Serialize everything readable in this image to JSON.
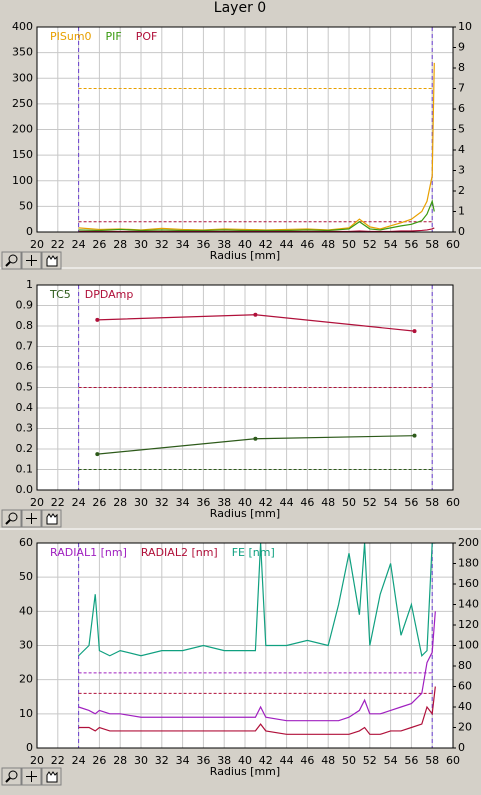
{
  "title": "Layer 0",
  "chart_data": [
    {
      "type": "line",
      "xlabel": "Radius [mm]",
      "xlim": [
        20,
        60
      ],
      "xticks": [
        20,
        22,
        24,
        26,
        28,
        30,
        32,
        34,
        36,
        38,
        40,
        42,
        44,
        46,
        48,
        50,
        52,
        54,
        56,
        58,
        60
      ],
      "ylim": [
        0,
        400
      ],
      "yticks": [
        0,
        50,
        100,
        150,
        200,
        250,
        300,
        350,
        400
      ],
      "y2lim": [
        0,
        10
      ],
      "y2ticks": [
        0,
        1,
        2,
        3,
        4,
        5,
        6,
        7,
        8,
        9,
        10
      ],
      "grid": true,
      "markers": false,
      "vlines": [
        24,
        58
      ],
      "vline_color": "#6a3fd0",
      "hlines": [
        {
          "value": 280,
          "color": "#e8a000"
        },
        {
          "value": 20,
          "color": "#b0103a"
        }
      ],
      "x": [
        24,
        26,
        28,
        30,
        32,
        34,
        36,
        38,
        40,
        42,
        44,
        46,
        48,
        50,
        51,
        52,
        53,
        54,
        55,
        56,
        57,
        57.5,
        58,
        58.2
      ],
      "series": [
        {
          "name": "PISum0",
          "color": "#e8a000",
          "values": [
            8,
            5,
            6,
            4,
            7,
            5,
            4,
            6,
            5,
            4,
            5,
            6,
            4,
            8,
            25,
            10,
            6,
            12,
            18,
            25,
            40,
            60,
            110,
            330
          ]
        },
        {
          "name": "PIF",
          "color": "#3a9a10",
          "values": [
            4,
            3,
            5,
            3,
            4,
            3,
            3,
            4,
            3,
            3,
            3,
            4,
            3,
            6,
            20,
            6,
            4,
            8,
            12,
            15,
            22,
            35,
            60,
            40
          ]
        },
        {
          "name": "POF",
          "color": "#b0103a",
          "values": [
            1,
            1,
            1,
            1,
            1,
            1,
            1,
            1,
            1,
            1,
            1,
            1,
            1,
            1,
            2,
            1,
            1,
            1,
            2,
            2,
            3,
            4,
            6,
            8
          ]
        }
      ]
    },
    {
      "type": "line",
      "xlabel": "Radius [mm]",
      "xlim": [
        20,
        60
      ],
      "xticks": [
        20,
        22,
        24,
        26,
        28,
        30,
        32,
        34,
        36,
        38,
        40,
        42,
        44,
        46,
        48,
        50,
        52,
        54,
        56,
        58,
        60
      ],
      "ylim": [
        0,
        1
      ],
      "yticks": [
        {
          "value": 0,
          "label": "0.0"
        },
        0.1,
        0.2,
        0.3,
        0.4,
        0.5,
        0.6,
        0.7,
        0.8,
        0.9,
        1
      ],
      "grid": true,
      "markers": true,
      "vlines": [
        24,
        58
      ],
      "vline_color": "#6a3fd0",
      "hlines": [
        {
          "value": 0.5,
          "color": "#b0103a"
        },
        {
          "value": 0.1,
          "color": "#2d5a1a"
        }
      ],
      "x": [
        25.8,
        41,
        56.3
      ],
      "series": [
        {
          "name": "TC5",
          "color": "#2d5a1a",
          "values": [
            0.175,
            0.25,
            0.265
          ]
        },
        {
          "name": "DPDAmp",
          "color": "#b0103a",
          "values": [
            0.83,
            0.855,
            0.775
          ]
        }
      ]
    },
    {
      "type": "line",
      "xlabel": "Radius [mm]",
      "xlim": [
        20,
        60
      ],
      "xticks": [
        20,
        22,
        24,
        26,
        28,
        30,
        32,
        34,
        36,
        38,
        40,
        42,
        44,
        46,
        48,
        50,
        52,
        54,
        56,
        58,
        60
      ],
      "ylim": [
        0,
        60
      ],
      "yticks": [
        0,
        10,
        20,
        30,
        40,
        50,
        60
      ],
      "y2lim": [
        0,
        200
      ],
      "y2ticks": [
        0,
        20,
        40,
        60,
        80,
        100,
        120,
        140,
        160,
        180,
        200
      ],
      "grid": true,
      "markers": false,
      "vlines": [
        24,
        58
      ],
      "vline_color": "#6a3fd0",
      "hlines": [
        {
          "value": 22,
          "color": "#a020c0"
        },
        {
          "value": 16,
          "color": "#b0103a"
        }
      ],
      "x": [
        24,
        25,
        25.6,
        26,
        27,
        28,
        30,
        32,
        34,
        36,
        38,
        40,
        41,
        41.5,
        42,
        44,
        46,
        48,
        49,
        50,
        51,
        51.5,
        52,
        53,
        54,
        55,
        56,
        57,
        57.5,
        58,
        58.3
      ],
      "series": [
        {
          "name": "RADIAL1 [nm]",
          "color": "#a020c0",
          "values": [
            12,
            11,
            10,
            11,
            10,
            10,
            9,
            9,
            9,
            9,
            9,
            9,
            9,
            12,
            9,
            8,
            8,
            8,
            8,
            9,
            11,
            14,
            10,
            10,
            11,
            12,
            13,
            16,
            25,
            28,
            40
          ]
        },
        {
          "name": "RADIAL2 [nm]",
          "color": "#b0103a",
          "values": [
            6,
            6,
            5,
            6,
            5,
            5,
            5,
            5,
            5,
            5,
            5,
            5,
            5,
            7,
            5,
            4,
            4,
            4,
            4,
            4,
            5,
            6,
            4,
            4,
            5,
            5,
            6,
            7,
            12,
            10,
            18
          ]
        },
        {
          "name": "FE [nm]",
          "color": "#10a080",
          "axis": "y2",
          "values": [
            90,
            100,
            150,
            95,
            90,
            95,
            90,
            95,
            95,
            100,
            95,
            95,
            95,
            200,
            100,
            100,
            105,
            100,
            140,
            190,
            130,
            200,
            100,
            150,
            180,
            110,
            140,
            90,
            95,
            200,
            200
          ]
        }
      ]
    }
  ]
}
